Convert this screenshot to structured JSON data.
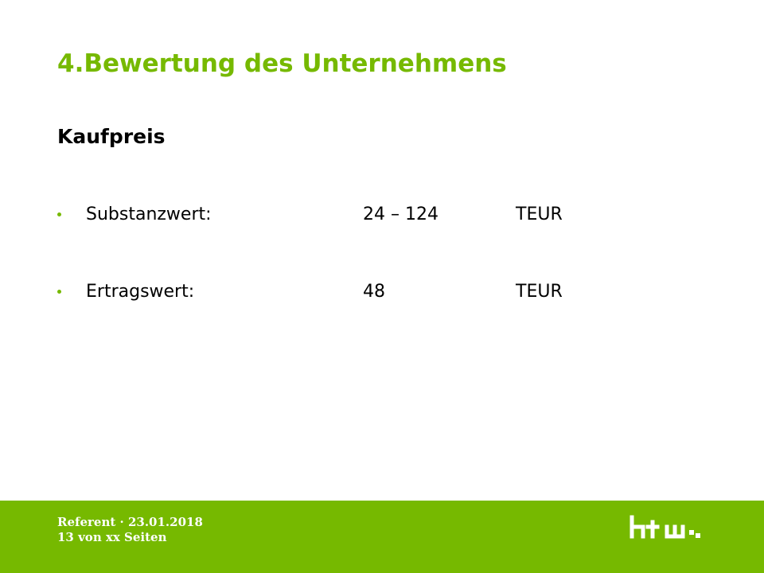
{
  "slide": {
    "title": "4.Bewertung des Unternehmens",
    "section_heading": "Kaufpreis",
    "items": [
      {
        "label": "Substanzwert:",
        "value": "24 – 124",
        "unit": "TEUR"
      },
      {
        "label": "Ertragswert:",
        "value": "48",
        "unit": "TEUR"
      }
    ]
  },
  "footer": {
    "line1": "Referent · 23.01.2018",
    "line2": "13 von xx Seiten",
    "logo_icon": "htw-logo-icon"
  },
  "colors": {
    "accent": "#76b900",
    "text": "#000000",
    "footer_text": "#ffffff"
  }
}
